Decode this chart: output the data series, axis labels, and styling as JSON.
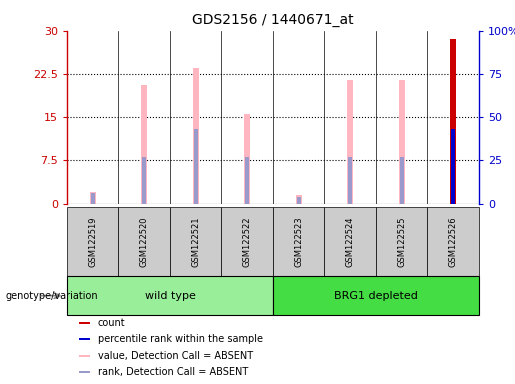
{
  "title": "GDS2156 / 1440671_at",
  "samples": [
    "GSM122519",
    "GSM122520",
    "GSM122521",
    "GSM122522",
    "GSM122523",
    "GSM122524",
    "GSM122525",
    "GSM122526"
  ],
  "left_ylim": [
    0,
    30
  ],
  "right_ylim": [
    0,
    100
  ],
  "left_yticks": [
    0,
    7.5,
    15,
    22.5,
    30
  ],
  "right_yticks": [
    0,
    25,
    50,
    75,
    100
  ],
  "left_ytick_labels": [
    "0",
    "7.5",
    "15",
    "22.5",
    "30"
  ],
  "right_ytick_labels": [
    "0",
    "25",
    "50",
    "75",
    "100%"
  ],
  "left_axis_color": "#cc0000",
  "right_axis_color": "#0000cc",
  "bar_data": [
    {
      "sample": "GSM122519",
      "value_absent": 2.0,
      "rank_absent": 6.0,
      "count": null,
      "rank": null
    },
    {
      "sample": "GSM122520",
      "value_absent": 20.5,
      "rank_absent": 27.0,
      "count": null,
      "rank": null
    },
    {
      "sample": "GSM122521",
      "value_absent": 23.5,
      "rank_absent": 43.0,
      "count": null,
      "rank": null
    },
    {
      "sample": "GSM122522",
      "value_absent": 15.5,
      "rank_absent": 27.0,
      "count": null,
      "rank": null
    },
    {
      "sample": "GSM122523",
      "value_absent": 1.5,
      "rank_absent": 4.0,
      "count": null,
      "rank": null
    },
    {
      "sample": "GSM122524",
      "value_absent": 21.5,
      "rank_absent": 27.0,
      "count": null,
      "rank": null
    },
    {
      "sample": "GSM122525",
      "value_absent": 21.5,
      "rank_absent": 27.0,
      "count": null,
      "rank": null
    },
    {
      "sample": "GSM122526",
      "value_absent": null,
      "rank_absent": null,
      "count": 28.5,
      "rank": 43.0
    }
  ],
  "value_absent_color": "#ffb6c1",
  "rank_absent_color": "#9999cc",
  "count_color": "#cc0000",
  "rank_present_color": "#0000cc",
  "bar_width": 0.12,
  "group_label": "genotype/variation",
  "groups": [
    {
      "label": "wild type",
      "start": 0,
      "end": 4,
      "color": "#99ee99"
    },
    {
      "label": "BRG1 depleted",
      "start": 4,
      "end": 8,
      "color": "#44dd44"
    }
  ],
  "sample_box_color": "#cccccc",
  "legend_items": [
    {
      "color": "#cc0000",
      "label": "count"
    },
    {
      "color": "#0000cc",
      "label": "percentile rank within the sample"
    },
    {
      "color": "#ffb6c1",
      "label": "value, Detection Call = ABSENT"
    },
    {
      "color": "#9999cc",
      "label": "rank, Detection Call = ABSENT"
    }
  ],
  "fig_bg": "#ffffff",
  "plot_bg": "#ffffff"
}
